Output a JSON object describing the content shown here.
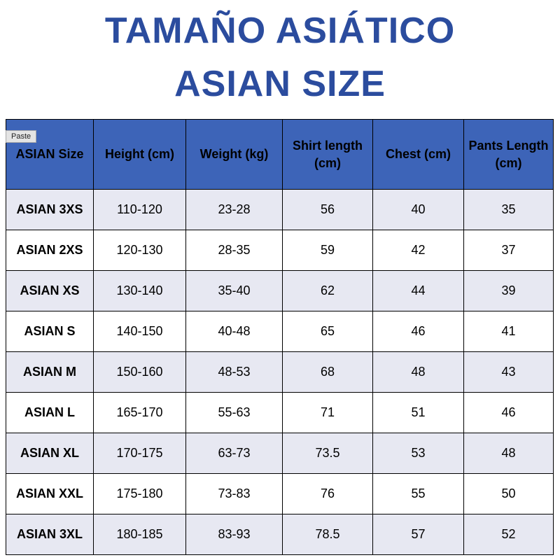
{
  "title": {
    "line1": "TAMAÑO ASIÁTICO",
    "line2": "ASIAN SIZE"
  },
  "paste_chip_label": "Paste",
  "colors": {
    "title_text": "#2b4c9e",
    "header_bg": "#3d64b8",
    "row_alt_bg": "#e7e8f2",
    "row_bg": "#ffffff",
    "border": "#000000"
  },
  "chart_data": {
    "type": "table",
    "title": "TAMAÑO ASIÁTICO / ASIAN SIZE",
    "columns": [
      "ASIAN Size",
      "Height (cm)",
      "Weight (kg)",
      "Shirt length (cm)",
      "Chest (cm)",
      "Pants Length (cm)"
    ],
    "rows": [
      [
        "ASIAN 3XS",
        "110-120",
        "23-28",
        "56",
        "40",
        "35"
      ],
      [
        "ASIAN 2XS",
        "120-130",
        "28-35",
        "59",
        "42",
        "37"
      ],
      [
        "ASIAN XS",
        "130-140",
        "35-40",
        "62",
        "44",
        "39"
      ],
      [
        "ASIAN S",
        "140-150",
        "40-48",
        "65",
        "46",
        "41"
      ],
      [
        "ASIAN M",
        "150-160",
        "48-53",
        "68",
        "48",
        "43"
      ],
      [
        "ASIAN L",
        "165-170",
        "55-63",
        "71",
        "51",
        "46"
      ],
      [
        "ASIAN XL",
        "170-175",
        "63-73",
        "73.5",
        "53",
        "48"
      ],
      [
        "ASIAN XXL",
        "175-180",
        "73-83",
        "76",
        "55",
        "50"
      ],
      [
        "ASIAN 3XL",
        "180-185",
        "83-93",
        "78.5",
        "57",
        "52"
      ]
    ]
  }
}
